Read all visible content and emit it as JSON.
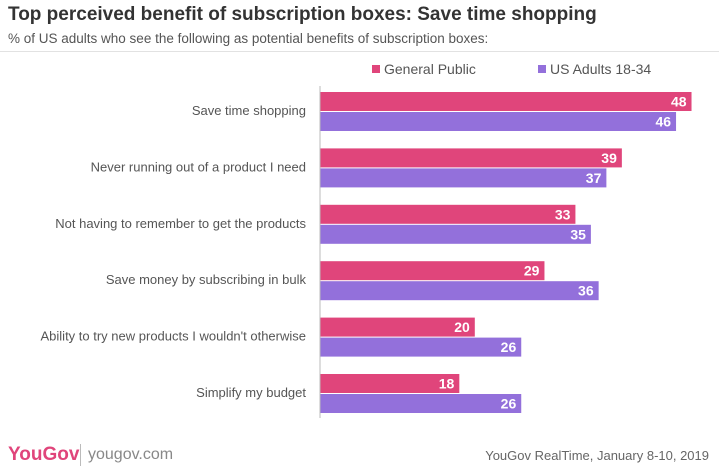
{
  "chart_data": {
    "type": "bar",
    "orientation": "horizontal",
    "title": "Top perceived benefit of subscription boxes: Save time shopping",
    "subtitle": "% of US adults who see the following as potential benefits of subscription boxes:",
    "categories": [
      "Save time shopping",
      "Never running out of a product I need",
      "Not having to remember to get the products",
      "Save money by subscribing in bulk",
      "Ability to try new products I wouldn't otherwise",
      "Simplify my budget"
    ],
    "series": [
      {
        "name": "General Public",
        "color": "#e0457b",
        "values": [
          48,
          39,
          33,
          29,
          20,
          18
        ]
      },
      {
        "name": "US Adults 18-34",
        "color": "#9370db",
        "values": [
          46,
          37,
          35,
          36,
          26,
          26
        ]
      }
    ],
    "xlim": [
      0,
      50
    ],
    "grid": false,
    "legend_position": "top-right",
    "data_labels": true
  },
  "footer": {
    "brand": "YouGov",
    "site": "yougov.com",
    "source": "YouGov RealTime, January 8-10, 2019"
  }
}
